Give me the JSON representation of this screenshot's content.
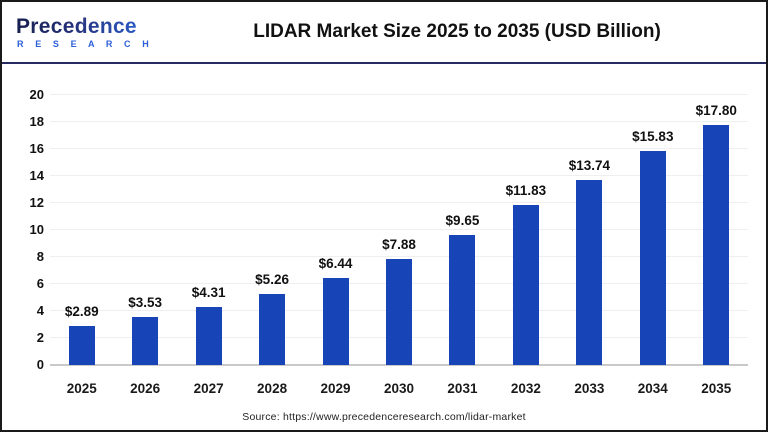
{
  "header": {
    "logo": {
      "name": "Precedence",
      "subtitle": "R E S E A R C H"
    },
    "title": "LIDAR Market Size 2025 to 2035 (USD Billion)"
  },
  "chart_data": {
    "type": "bar",
    "title": "LIDAR Market Size 2025 to 2035 (USD Billion)",
    "categories": [
      "2025",
      "2026",
      "2027",
      "2028",
      "2029",
      "2030",
      "2031",
      "2032",
      "2033",
      "2034",
      "2035"
    ],
    "values": [
      2.89,
      3.53,
      4.31,
      5.26,
      6.44,
      7.88,
      9.65,
      11.83,
      13.74,
      15.83,
      17.8
    ],
    "value_labels": [
      "$2.89",
      "$3.53",
      "$4.31",
      "$5.26",
      "$6.44",
      "$7.88",
      "$9.65",
      "$11.83",
      "$13.74",
      "$15.83",
      "$17.80"
    ],
    "xlabel": "",
    "ylabel": "",
    "ylim": [
      0,
      20
    ],
    "yticks": [
      0,
      2,
      4,
      6,
      8,
      10,
      12,
      14,
      16,
      18,
      20
    ],
    "grid": true,
    "legend_position": "none",
    "bar_color": "#1745B8"
  },
  "footer": {
    "source": "Source: https://www.precedenceresearch.com/lidar-market"
  },
  "colors": {
    "bar": "#1745B8",
    "header_separator": "#262a63",
    "frame_border": "#1a1a1a",
    "gridline": "#efefef",
    "axis_line": "#c9c9c9",
    "logo_dark_navy": "#171f4e",
    "logo_blue": "#2f6ee8",
    "research_blue": "#2b5ed8",
    "text": "#111111"
  }
}
